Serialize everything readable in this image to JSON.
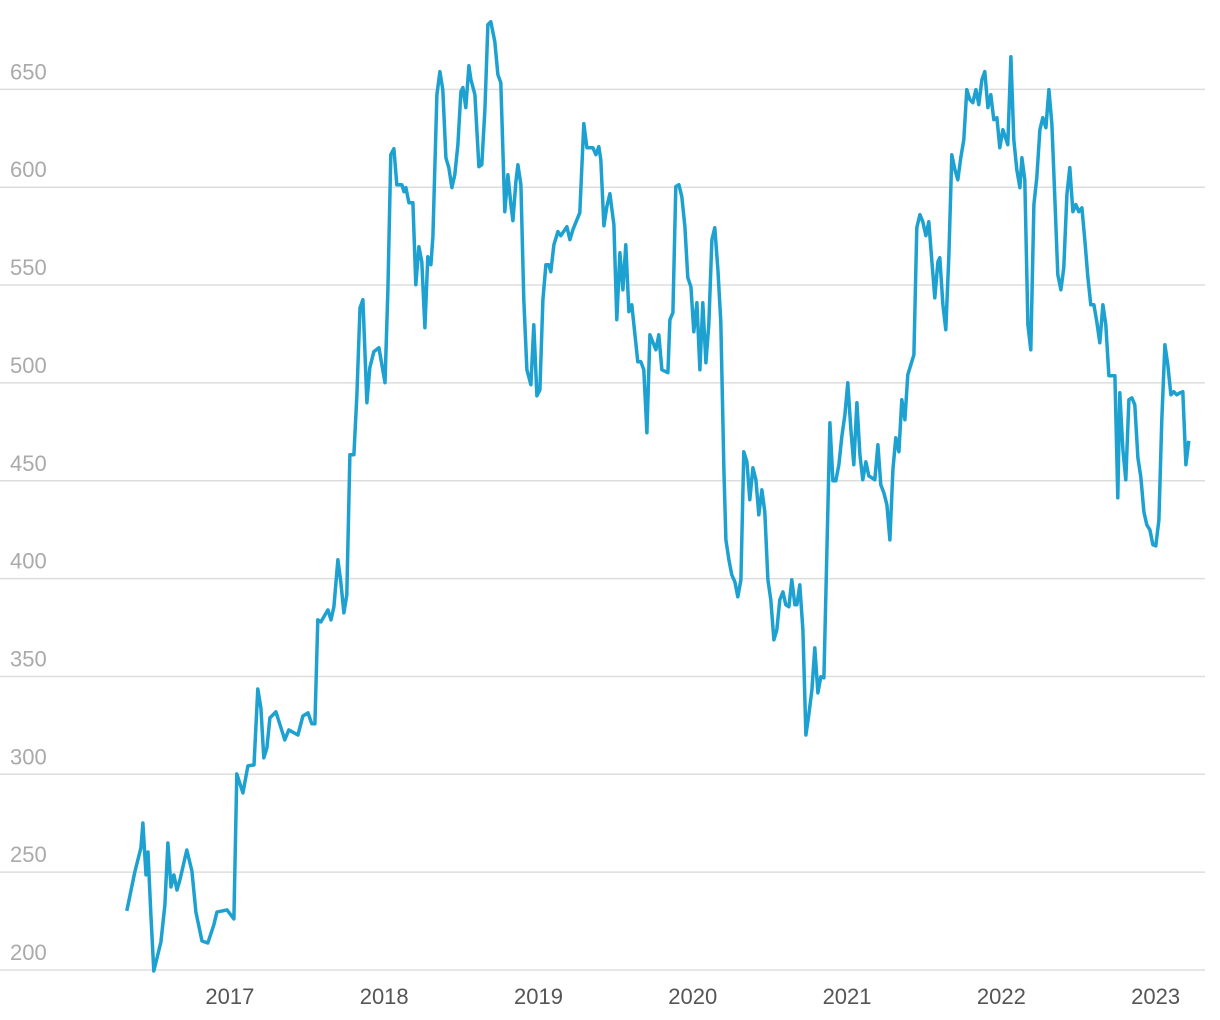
{
  "chart_data": {
    "type": "line",
    "color": "#1da1d1",
    "grid": true,
    "xlim": [
      2015.51,
      2023.32
    ],
    "xticks": [
      2017,
      2018,
      2019,
      2020,
      2021,
      2022,
      2023
    ],
    "ylim": [
      200,
      688
    ],
    "yticks": [
      200,
      250,
      300,
      350,
      400,
      450,
      500,
      550,
      600,
      650
    ],
    "x": [
      2016.332,
      2016.384,
      2016.423,
      2016.436,
      2016.456,
      2016.469,
      2016.488,
      2016.507,
      2016.553,
      2016.579,
      2016.598,
      2016.618,
      2016.637,
      2016.657,
      2016.676,
      2016.721,
      2016.754,
      2016.78,
      2016.819,
      2016.857,
      2016.896,
      2016.916,
      2016.981,
      2017.026,
      2017.045,
      2017.084,
      2017.117,
      2017.156,
      2017.181,
      2017.201,
      2017.22,
      2017.24,
      2017.259,
      2017.298,
      2017.356,
      2017.382,
      2017.441,
      2017.473,
      2017.506,
      2017.531,
      2017.551,
      2017.57,
      2017.59,
      2017.635,
      2017.655,
      2017.674,
      2017.7,
      2017.719,
      2017.739,
      2017.758,
      2017.778,
      2017.804,
      2017.823,
      2017.843,
      2017.862,
      2017.888,
      2017.907,
      2017.933,
      2017.966,
      2018.005,
      2018.024,
      2018.043,
      2018.063,
      2018.082,
      2018.115,
      2018.128,
      2018.141,
      2018.16,
      2018.186,
      2018.205,
      2018.225,
      2018.244,
      2018.264,
      2018.283,
      2018.303,
      2018.316,
      2018.342,
      2018.361,
      2018.38,
      2018.4,
      2018.419,
      2018.439,
      2018.458,
      2018.478,
      2018.497,
      2018.51,
      2018.529,
      2018.549,
      2018.562,
      2018.588,
      2018.614,
      2018.633,
      2018.653,
      2018.672,
      2018.691,
      2018.717,
      2018.737,
      2018.756,
      2018.782,
      2018.802,
      2018.821,
      2018.834,
      2018.854,
      2018.867,
      2018.886,
      2018.905,
      2018.925,
      2018.951,
      2018.97,
      2018.99,
      2019.009,
      2019.029,
      2019.048,
      2019.067,
      2019.08,
      2019.1,
      2019.126,
      2019.145,
      2019.184,
      2019.204,
      2019.223,
      2019.268,
      2019.294,
      2019.314,
      2019.353,
      2019.372,
      2019.391,
      2019.404,
      2019.424,
      2019.443,
      2019.463,
      2019.489,
      2019.508,
      2019.528,
      2019.547,
      2019.566,
      2019.586,
      2019.605,
      2019.644,
      2019.664,
      2019.683,
      2019.703,
      2019.722,
      2019.761,
      2019.78,
      2019.8,
      2019.839,
      2019.852,
      2019.871,
      2019.89,
      2019.91,
      2019.929,
      2019.949,
      2019.968,
      2019.988,
      2020.007,
      2020.027,
      2020.046,
      2020.065,
      2020.085,
      2020.104,
      2020.124,
      2020.143,
      2020.163,
      2020.182,
      2020.202,
      2020.215,
      2020.234,
      2020.253,
      2020.273,
      2020.292,
      2020.312,
      2020.331,
      2020.351,
      2020.37,
      2020.39,
      2020.409,
      2020.428,
      2020.448,
      2020.467,
      2020.487,
      2020.506,
      2020.526,
      2020.545,
      2020.564,
      2020.584,
      2020.603,
      2020.623,
      2020.642,
      2020.662,
      2020.675,
      2020.694,
      2020.714,
      2020.733,
      2020.752,
      2020.772,
      2020.791,
      2020.811,
      2020.83,
      2020.85,
      2020.869,
      2020.889,
      2020.908,
      2020.927,
      2020.947,
      2020.966,
      2020.986,
      2021.005,
      2021.025,
      2021.044,
      2021.064,
      2021.083,
      2021.102,
      2021.122,
      2021.141,
      2021.18,
      2021.2,
      2021.219,
      2021.239,
      2021.258,
      2021.278,
      2021.297,
      2021.316,
      2021.336,
      2021.355,
      2021.375,
      2021.394,
      2021.433,
      2021.452,
      2021.472,
      2021.491,
      2021.511,
      2021.53,
      2021.55,
      2021.569,
      2021.589,
      2021.601,
      2021.621,
      2021.64,
      2021.66,
      2021.679,
      2021.699,
      2021.718,
      2021.737,
      2021.757,
      2021.776,
      2021.796,
      2021.815,
      2021.835,
      2021.854,
      2021.874,
      2021.893,
      2021.913,
      2021.932,
      2021.951,
      2021.971,
      2021.99,
      2022.01,
      2022.042,
      2022.062,
      2022.081,
      2022.1,
      2022.12,
      2022.133,
      2022.152,
      2022.172,
      2022.191,
      2022.211,
      2022.23,
      2022.25,
      2022.269,
      2022.289,
      2022.308,
      2022.328,
      2022.347,
      2022.366,
      2022.386,
      2022.405,
      2022.425,
      2022.444,
      2022.464,
      2022.483,
      2022.502,
      2022.522,
      2022.541,
      2022.561,
      2022.58,
      2022.6,
      2022.619,
      2022.638,
      2022.658,
      2022.677,
      2022.697,
      2022.736,
      2022.755,
      2022.768,
      2022.788,
      2022.807,
      2022.827,
      2022.846,
      2022.865,
      2022.885,
      2022.904,
      2022.924,
      2022.943,
      2022.963,
      2022.982,
      2023.001,
      2023.021,
      2023.04,
      2023.06,
      2023.079,
      2023.099,
      2023.118,
      2023.137,
      2023.157,
      2023.176,
      2023.196,
      2023.215
    ],
    "values": [
      230.2,
      250.1,
      262.4,
      275.1,
      248.6,
      260.3,
      228.1,
      199.5,
      214.3,
      233.2,
      264.9,
      242.4,
      248.6,
      240.9,
      246.0,
      261.3,
      250.6,
      229.6,
      214.8,
      213.8,
      223.0,
      229.6,
      230.7,
      226.1,
      300.2,
      290.5,
      304.3,
      304.8,
      343.6,
      333.9,
      308.4,
      313.5,
      328.8,
      331.9,
      317.6,
      322.7,
      320.1,
      329.8,
      331.4,
      325.8,
      325.8,
      378.9,
      377.9,
      384.0,
      378.9,
      385.6,
      409.6,
      398.3,
      382.5,
      391.7,
      463.3,
      463.3,
      493.9,
      538.4,
      542.5,
      489.9,
      507.7,
      515.9,
      518.0,
      500.1,
      547.6,
      616.6,
      619.7,
      601.3,
      601.3,
      597.7,
      599.8,
      592.1,
      592.1,
      550.2,
      569.6,
      561.9,
      528.2,
      564.5,
      560.4,
      574.7,
      647.3,
      659.1,
      649.9,
      615.1,
      610.0,
      599.8,
      606.4,
      621.7,
      648.8,
      650.9,
      640.7,
      662.1,
      655.0,
      647.3,
      610.5,
      611.5,
      639.6,
      683.1,
      684.6,
      674.4,
      657.5,
      653.4,
      587.5,
      606.4,
      591.1,
      582.9,
      602.8,
      611.5,
      601.3,
      542.5,
      506.7,
      499.1,
      529.7,
      493.4,
      496.5,
      542.5,
      560.4,
      560.4,
      556.8,
      570.6,
      577.3,
      575.2,
      579.8,
      573.2,
      578.3,
      587.0,
      632.5,
      620.2,
      620.2,
      616.6,
      620.7,
      614.1,
      580.3,
      590.0,
      596.7,
      580.8,
      532.3,
      566.5,
      547.6,
      570.6,
      536.4,
      539.9,
      510.8,
      510.8,
      506.7,
      474.5,
      524.6,
      516.9,
      524.6,
      506.7,
      505.2,
      532.3,
      535.9,
      600.3,
      601.3,
      595.2,
      579.8,
      553.8,
      549.1,
      526.1,
      541.0,
      506.7,
      541.0,
      510.3,
      529.7,
      573.2,
      579.3,
      557.8,
      531.3,
      455.6,
      419.8,
      409.6,
      401.9,
      398.3,
      390.7,
      399.4,
      464.8,
      459.7,
      440.3,
      456.6,
      450.5,
      432.6,
      445.4,
      434.1,
      399.4,
      389.1,
      368.7,
      373.8,
      389.1,
      393.2,
      386.6,
      385.6,
      399.4,
      386.6,
      386.6,
      396.8,
      373.8,
      320.1,
      330.4,
      343.1,
      364.6,
      341.6,
      349.8,
      349.3,
      412.1,
      479.6,
      450.0,
      450.0,
      458.2,
      472.5,
      483.7,
      500.1,
      476.0,
      458.2,
      489.9,
      463.3,
      450.5,
      459.7,
      452.5,
      450.5,
      468.4,
      447.9,
      443.8,
      437.7,
      419.8,
      455.6,
      472.0,
      464.8,
      491.4,
      481.2,
      504.2,
      514.4,
      579.3,
      586.0,
      582.4,
      575.2,
      582.4,
      561.9,
      543.5,
      561.9,
      564.0,
      539.9,
      527.2,
      565.5,
      616.6,
      609.0,
      603.8,
      615.1,
      624.3,
      649.9,
      644.7,
      643.2,
      649.9,
      642.2,
      655.0,
      659.1,
      640.7,
      647.3,
      634.5,
      635.5,
      620.2,
      629.4,
      621.7,
      666.7,
      624.3,
      609.0,
      599.8,
      615.1,
      603.8,
      529.7,
      516.9,
      591.1,
      604.9,
      629.4,
      635.5,
      630.4,
      649.9,
      632.0,
      593.6,
      555.3,
      547.6,
      558.9,
      596.2,
      610.0,
      587.5,
      591.1,
      587.5,
      589.5,
      573.2,
      553.8,
      539.9,
      539.9,
      531.3,
      520.5,
      539.9,
      529.7,
      503.7,
      503.7,
      441.3,
      495.0,
      465.8,
      450.5,
      491.4,
      492.4,
      488.8,
      461.7,
      452.0,
      434.1,
      427.5,
      424.9,
      417.3,
      416.7,
      430.0,
      481.2,
      519.5,
      509.3,
      493.9,
      495.5,
      493.9,
      494.9,
      495.5,
      458.2,
      470.4
    ]
  }
}
